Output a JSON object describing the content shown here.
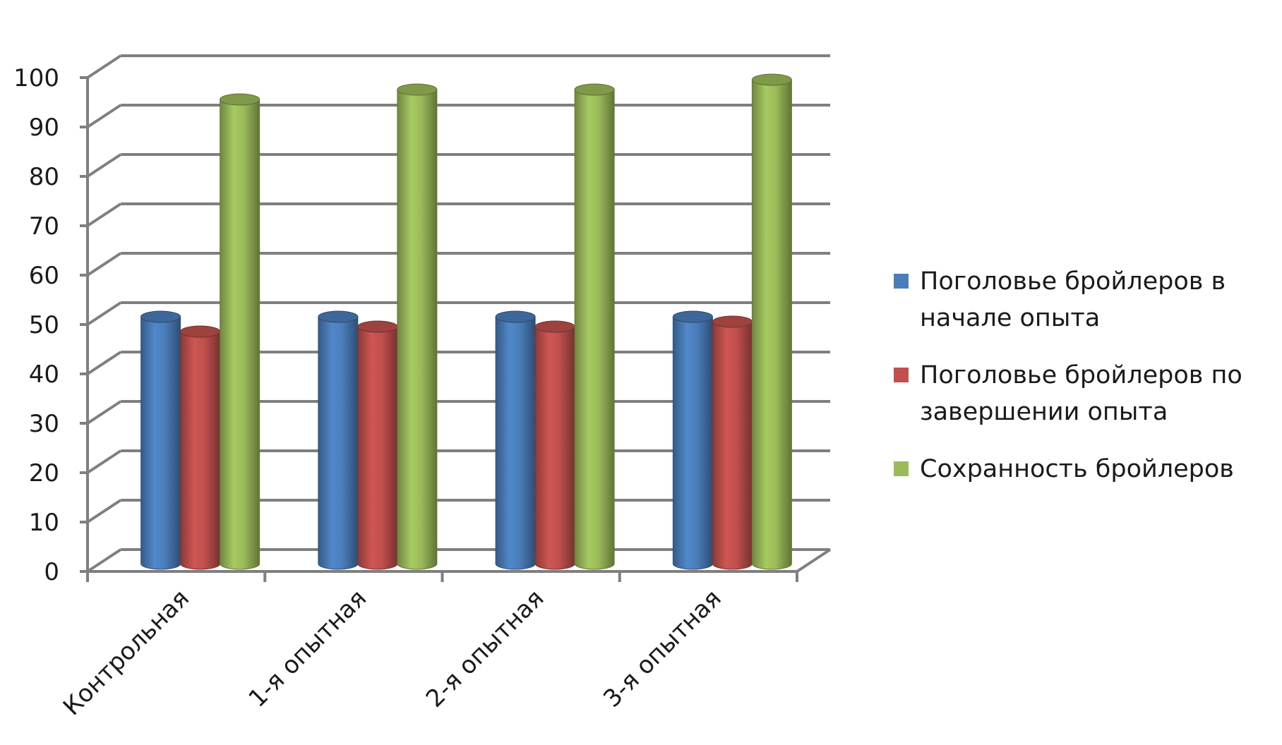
{
  "chart_data": {
    "type": "bar",
    "title": "",
    "xlabel": "",
    "ylabel": "",
    "ylim": [
      0,
      100
    ],
    "yticks": [
      "0",
      "10",
      "20",
      "30",
      "40",
      "50",
      "60",
      "70",
      "80",
      "90",
      "100"
    ],
    "categories": [
      "Контрольная",
      "1-я опытная",
      "2-я опытная",
      "3-я опытная"
    ],
    "series": [
      {
        "name": "Поголовье бройлеров в начале опыта",
        "color": "#4a7ebb",
        "values": [
          50,
          50,
          50,
          50
        ]
      },
      {
        "name": "Поголовье бройлеров по завершении опыта",
        "color": "#c0504d",
        "values": [
          47,
          48,
          48,
          49
        ]
      },
      {
        "name": "Сохранность бройлеров",
        "color": "#9bbb59",
        "values": [
          94,
          96,
          96,
          98
        ]
      }
    ],
    "style": "3d-cylinder",
    "grid": true,
    "legend_position": "right"
  }
}
